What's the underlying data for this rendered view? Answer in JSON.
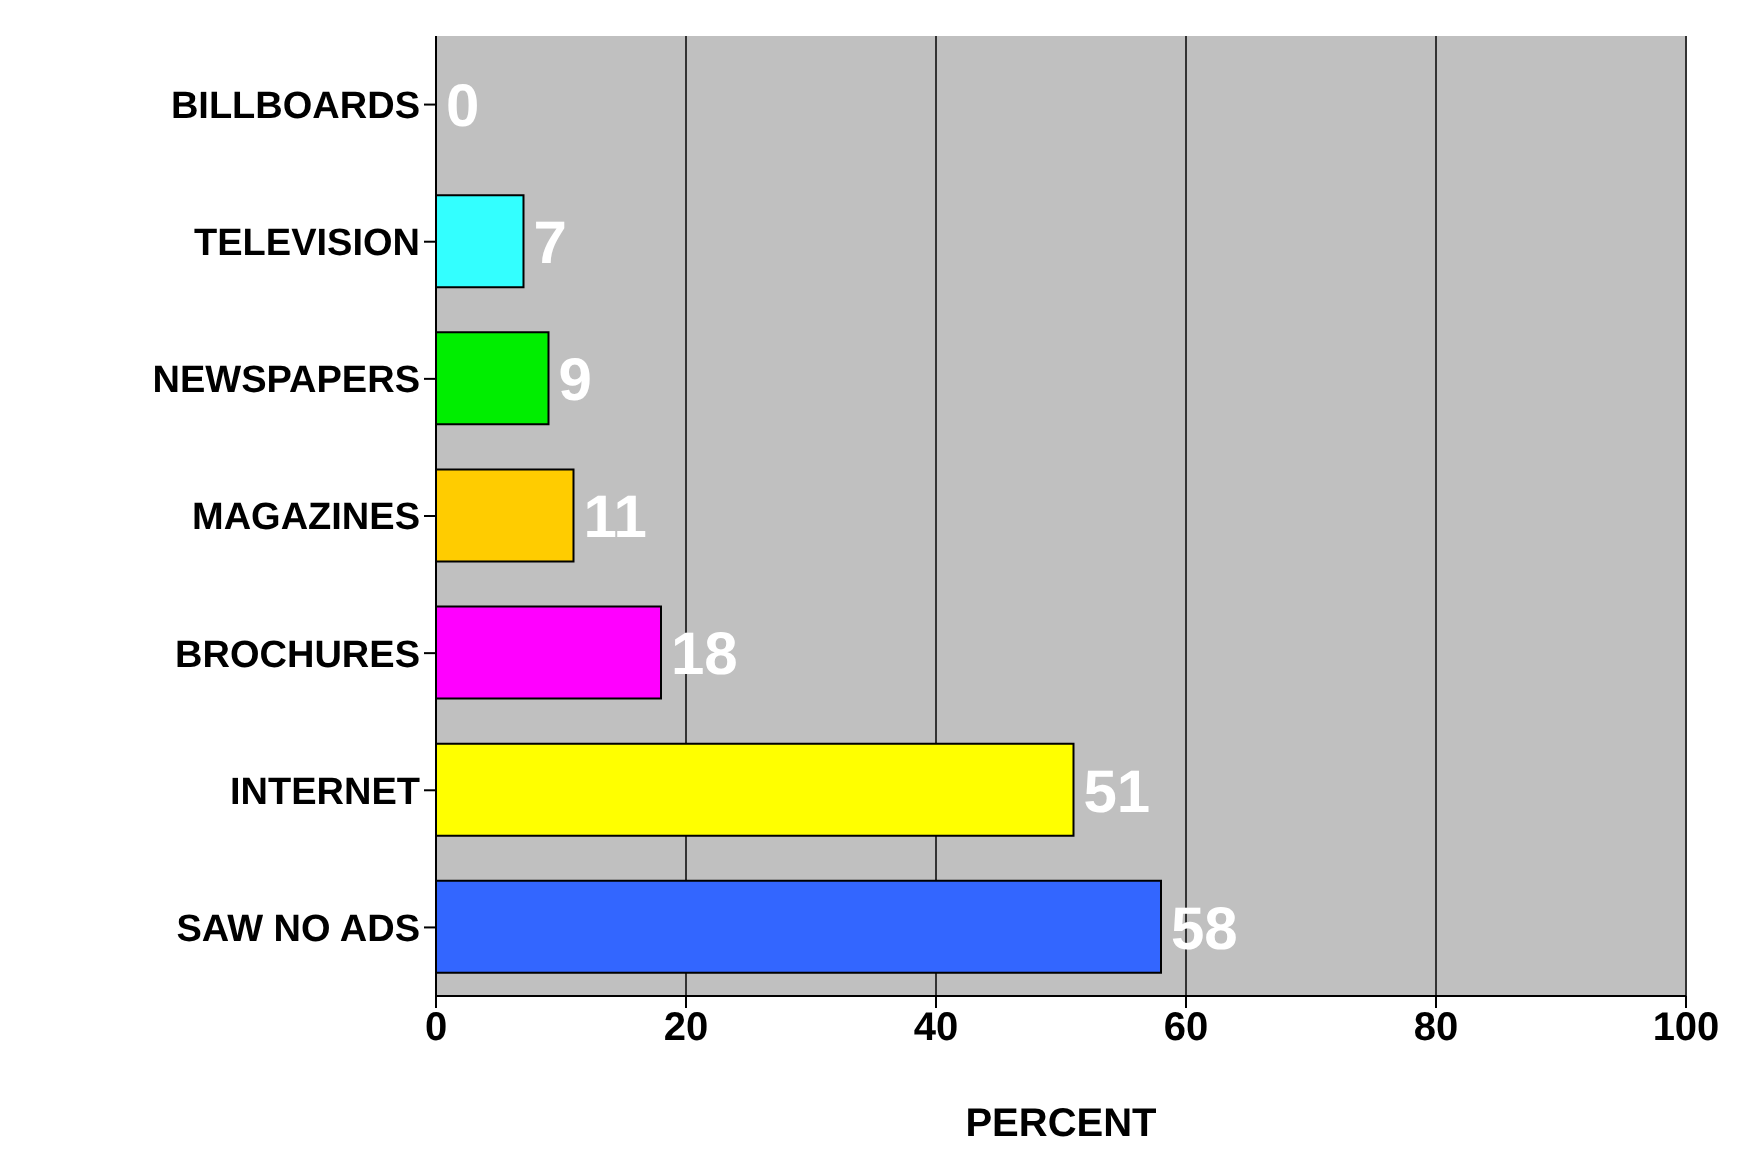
{
  "chart_data": {
    "type": "bar",
    "orientation": "horizontal",
    "xlabel": "PERCENT",
    "categories": [
      "BILLBOARDS",
      "TELEVISION",
      "NEWSPAPERS",
      "MAGAZINES",
      "BROCHURES",
      "INTERNET",
      "SAW NO ADS"
    ],
    "values": [
      0,
      7,
      9,
      11,
      18,
      51,
      58
    ],
    "colors": [
      "#7a1f3d",
      "#33ffff",
      "#00ee00",
      "#ffcc00",
      "#ff00ff",
      "#ffff00",
      "#3366ff"
    ],
    "xlim": [
      0,
      100
    ],
    "xticks": [
      0,
      20,
      40,
      60,
      80,
      100
    ],
    "grid": "x",
    "data_labels": true,
    "legend": false
  }
}
